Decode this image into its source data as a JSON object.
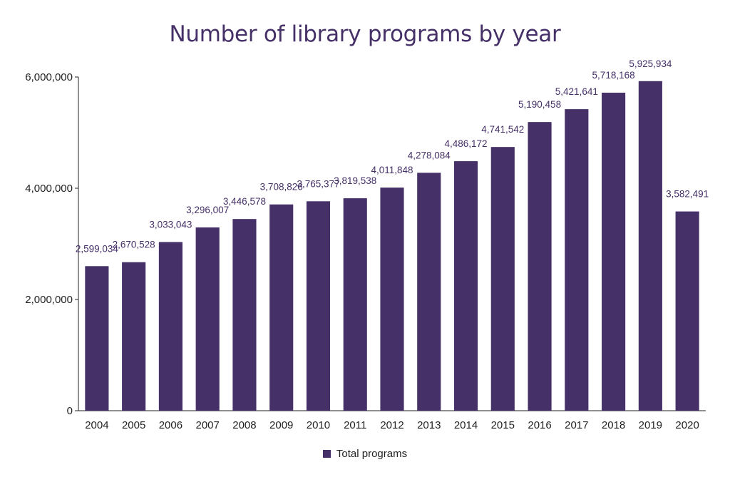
{
  "chart_data": {
    "type": "bar",
    "title": "Number of library programs by year",
    "xlabel": "",
    "ylabel": "",
    "categories": [
      "2004",
      "2005",
      "2006",
      "2007",
      "2008",
      "2009",
      "2010",
      "2011",
      "2012",
      "2013",
      "2014",
      "2015",
      "2016",
      "2017",
      "2018",
      "2019",
      "2020"
    ],
    "series": [
      {
        "name": "Total programs",
        "values": [
          2599034,
          2670528,
          3033043,
          3296007,
          3446578,
          3708826,
          3765377,
          3819538,
          4011848,
          4278084,
          4486172,
          4741542,
          5190458,
          5421641,
          5718168,
          5925934,
          3582491
        ],
        "data_labels": [
          "2,599,034",
          "2,670,528",
          "3,033,043",
          "3,296,007",
          "3,446,578",
          "3,708,826",
          "3,765,377",
          "3,819,538",
          "4,011,848",
          "4,278,084",
          "4,486,172",
          "4,741,542",
          "5,190,458",
          "5,421,641",
          "5,718,168",
          "5,925,934",
          "3,582,491"
        ]
      }
    ],
    "ylim": [
      0,
      6000000
    ],
    "yticks": [
      0,
      2000000,
      4000000,
      6000000
    ],
    "ytick_labels": [
      "0",
      "2,000,000",
      "4,000,000",
      "6,000,000"
    ],
    "grid": false,
    "legend_position": "bottom-center",
    "colors": {
      "bar": "#453068",
      "title": "#453068",
      "axis": "#222222"
    }
  }
}
